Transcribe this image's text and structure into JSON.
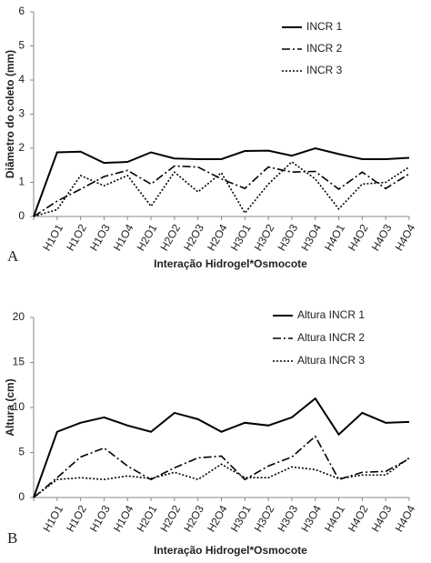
{
  "chart_data": [
    {
      "type": "line",
      "panel_label": "A",
      "xlabel": "Interação Hidrogel*Osmocote",
      "ylabel": "Diâmetro do coleto (mm)",
      "categories": [
        null,
        "H1O1",
        "H1O2",
        "H1O3",
        "H1O4",
        "H2O1",
        "H2O2",
        "H2O3",
        "H2O4",
        "H3O1",
        "H3O2",
        "H3O3",
        "H3O4",
        "H4O1",
        "H4O2",
        "H4O3",
        "H4O4"
      ],
      "ylim": [
        0,
        6
      ],
      "yticks": [
        0,
        1,
        2,
        3,
        4,
        5,
        6
      ],
      "series": [
        {
          "name": "INCR 1",
          "color": "#000000",
          "dash": "solid",
          "values": [
            0,
            1.88,
            1.9,
            1.57,
            1.6,
            1.88,
            1.7,
            1.68,
            1.68,
            1.92,
            1.93,
            1.78,
            2.0,
            1.83,
            1.68,
            1.68,
            1.72
          ]
        },
        {
          "name": "INCR 2",
          "color": "#000000",
          "dash": "dashdot",
          "values": [
            0,
            0.45,
            0.8,
            1.17,
            1.35,
            0.95,
            1.48,
            1.45,
            1.1,
            0.82,
            1.45,
            1.3,
            1.32,
            0.8,
            1.3,
            0.82,
            1.25
          ]
        },
        {
          "name": "INCR 3",
          "color": "#000000",
          "dash": "dotted",
          "values": [
            0,
            0.2,
            1.2,
            0.9,
            1.2,
            0.3,
            1.3,
            0.72,
            1.28,
            0.1,
            0.95,
            1.6,
            1.1,
            0.22,
            0.95,
            1.0,
            1.45
          ]
        }
      ]
    },
    {
      "type": "line",
      "panel_label": "B",
      "xlabel": "Interação Hidrogel*Osmocote",
      "ylabel": "Altura (cm)",
      "categories": [
        null,
        "H1O1",
        "H1O2",
        "H1O3",
        "H1O4",
        "H2O1",
        "H2O2",
        "H2O3",
        "H2O4",
        "H3O1",
        "H3O2",
        "H3O3",
        "H3O4",
        "H4O1",
        "H4O2",
        "H4O3",
        "H4O4"
      ],
      "ylim": [
        0,
        20
      ],
      "yticks": [
        0,
        5,
        10,
        15,
        20
      ],
      "series": [
        {
          "name": "Altura INCR 1",
          "color": "#000000",
          "dash": "solid",
          "values": [
            0,
            7.3,
            8.3,
            8.9,
            8.0,
            7.3,
            9.4,
            8.7,
            7.3,
            8.3,
            8.0,
            8.9,
            11.0,
            7.0,
            9.4,
            8.3,
            8.4
          ]
        },
        {
          "name": "Altura INCR 2",
          "color": "#000000",
          "dash": "dashdot",
          "values": [
            0,
            2.2,
            4.5,
            5.5,
            3.5,
            2.0,
            3.3,
            4.4,
            4.6,
            2.0,
            3.5,
            4.5,
            6.8,
            2.0,
            2.8,
            2.9,
            4.3
          ]
        },
        {
          "name": "Altura INCR 3",
          "color": "#000000",
          "dash": "dotted",
          "values": [
            0,
            2.0,
            2.2,
            2.0,
            2.4,
            2.1,
            2.8,
            2.0,
            3.7,
            2.2,
            2.2,
            3.4,
            3.1,
            2.1,
            2.5,
            2.5,
            4.4
          ]
        }
      ]
    }
  ]
}
